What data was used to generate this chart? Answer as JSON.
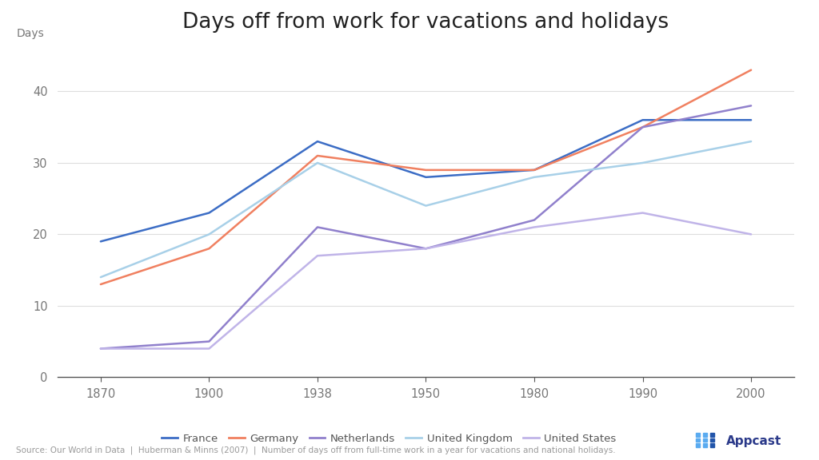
{
  "title": "Days off from work for vacations and holidays",
  "ylabel": "Days",
  "source_text": "Source: Our World in Data  |  Huberman & Minns (2007)  |  Number of days off from full-time work in a year for vacations and national holidays.",
  "x_labels": [
    "1870",
    "1900",
    "1938",
    "1950",
    "1980",
    "1990",
    "2000"
  ],
  "x_positions": [
    0,
    1,
    2,
    3,
    4,
    5,
    6
  ],
  "ylim": [
    0,
    47
  ],
  "yticks": [
    0,
    10,
    20,
    30,
    40
  ],
  "series": {
    "France": {
      "x": [
        0,
        1,
        2,
        3,
        4,
        5,
        6
      ],
      "y": [
        19,
        23,
        33,
        28,
        29,
        36,
        36
      ],
      "color": "#3C6DC5"
    },
    "Germany": {
      "x": [
        0,
        1,
        2,
        3,
        4,
        5,
        6
      ],
      "y": [
        13,
        18,
        31,
        29,
        29,
        35,
        43
      ],
      "color": "#F08060"
    },
    "Netherlands": {
      "x": [
        0,
        1,
        2,
        3,
        4,
        5,
        6
      ],
      "y": [
        4,
        5,
        21,
        18,
        22,
        35,
        38
      ],
      "color": "#9080CC"
    },
    "United Kingdom": {
      "x": [
        0,
        1,
        2,
        3,
        4,
        5,
        6
      ],
      "y": [
        14,
        20,
        30,
        24,
        28,
        30,
        33
      ],
      "color": "#A8D0E8"
    },
    "United States": {
      "x": [
        0,
        1,
        2,
        3,
        4,
        5,
        6
      ],
      "y": [
        4,
        4,
        17,
        18,
        21,
        23,
        20
      ],
      "color": "#C0B4E8"
    }
  },
  "background_color": "#FFFFFF"
}
